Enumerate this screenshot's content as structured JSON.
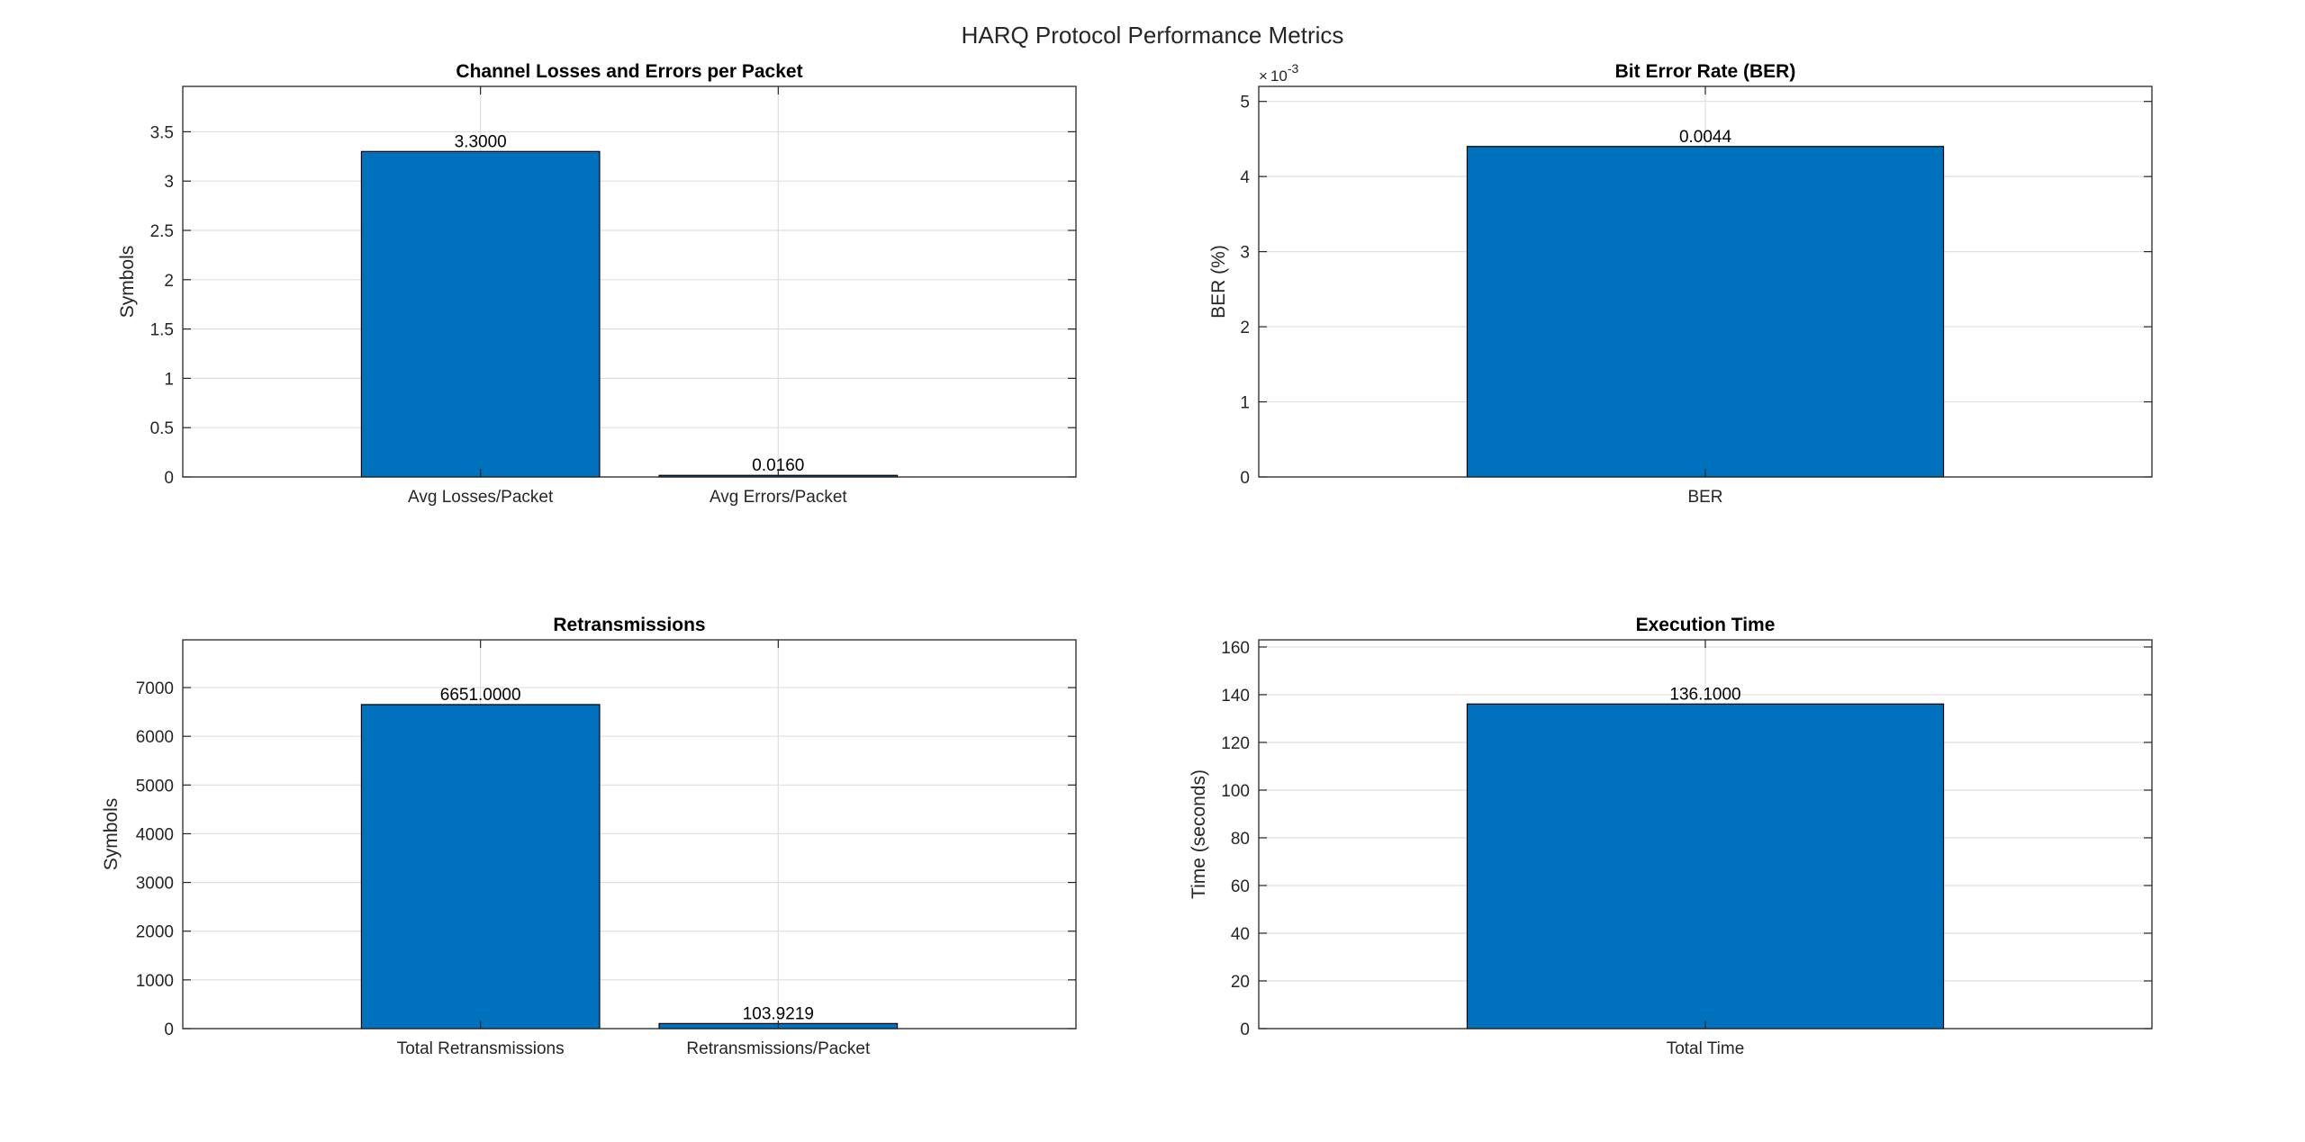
{
  "figure_title": "HARQ Protocol Performance Metrics",
  "colors": {
    "bar": "#0072BD",
    "axis": "#262626",
    "grid": "#DFDFDF"
  },
  "chart_data": [
    {
      "type": "bar",
      "title": "Channel Losses and Errors per Packet",
      "ylabel": "Symbols",
      "categories": [
        "Avg Losses/Packet",
        "Avg Errors/Packet"
      ],
      "values": [
        3.3,
        0.016
      ],
      "data_labels": [
        "3.3000",
        "0.0160"
      ],
      "ylim": [
        0,
        3.96
      ],
      "yticks": [
        0,
        0.5,
        1,
        1.5,
        2,
        2.5,
        3,
        3.5
      ],
      "ytick_labels": [
        "0",
        "0.5",
        "1",
        "1.5",
        "2",
        "2.5",
        "3",
        "3.5"
      ],
      "grid": true
    },
    {
      "type": "bar",
      "title": "Bit Error Rate (BER)",
      "ylabel": "BER (%)",
      "categories": [
        "BER"
      ],
      "values": [
        0.0044
      ],
      "data_labels": [
        "0.0044"
      ],
      "ylim": [
        0,
        0.0052
      ],
      "yticks": [
        0,
        0.001,
        0.002,
        0.003,
        0.004,
        0.005
      ],
      "ytick_labels": [
        "0",
        "1",
        "2",
        "3",
        "4",
        "5"
      ],
      "exponent_label": "10",
      "exponent_power": "-3",
      "grid": true
    },
    {
      "type": "bar",
      "title": "Retransmissions",
      "ylabel": "Symbols",
      "categories": [
        "Total Retransmissions",
        "Retransmissions/Packet"
      ],
      "values": [
        6651.0,
        103.9219
      ],
      "data_labels": [
        "6651.0000",
        "103.9219"
      ],
      "ylim": [
        0,
        7980
      ],
      "yticks": [
        0,
        1000,
        2000,
        3000,
        4000,
        5000,
        6000,
        7000
      ],
      "ytick_labels": [
        "0",
        "1000",
        "2000",
        "3000",
        "4000",
        "5000",
        "6000",
        "7000"
      ],
      "grid": true
    },
    {
      "type": "bar",
      "title": "Execution Time",
      "ylabel": "Time (seconds)",
      "categories": [
        "Total Time"
      ],
      "values": [
        136.1
      ],
      "data_labels": [
        "136.1000"
      ],
      "ylim": [
        0,
        163
      ],
      "yticks": [
        0,
        20,
        40,
        60,
        80,
        100,
        120,
        140,
        160
      ],
      "ytick_labels": [
        "0",
        "20",
        "40",
        "60",
        "80",
        "100",
        "120",
        "140",
        "160"
      ],
      "grid": true
    }
  ]
}
